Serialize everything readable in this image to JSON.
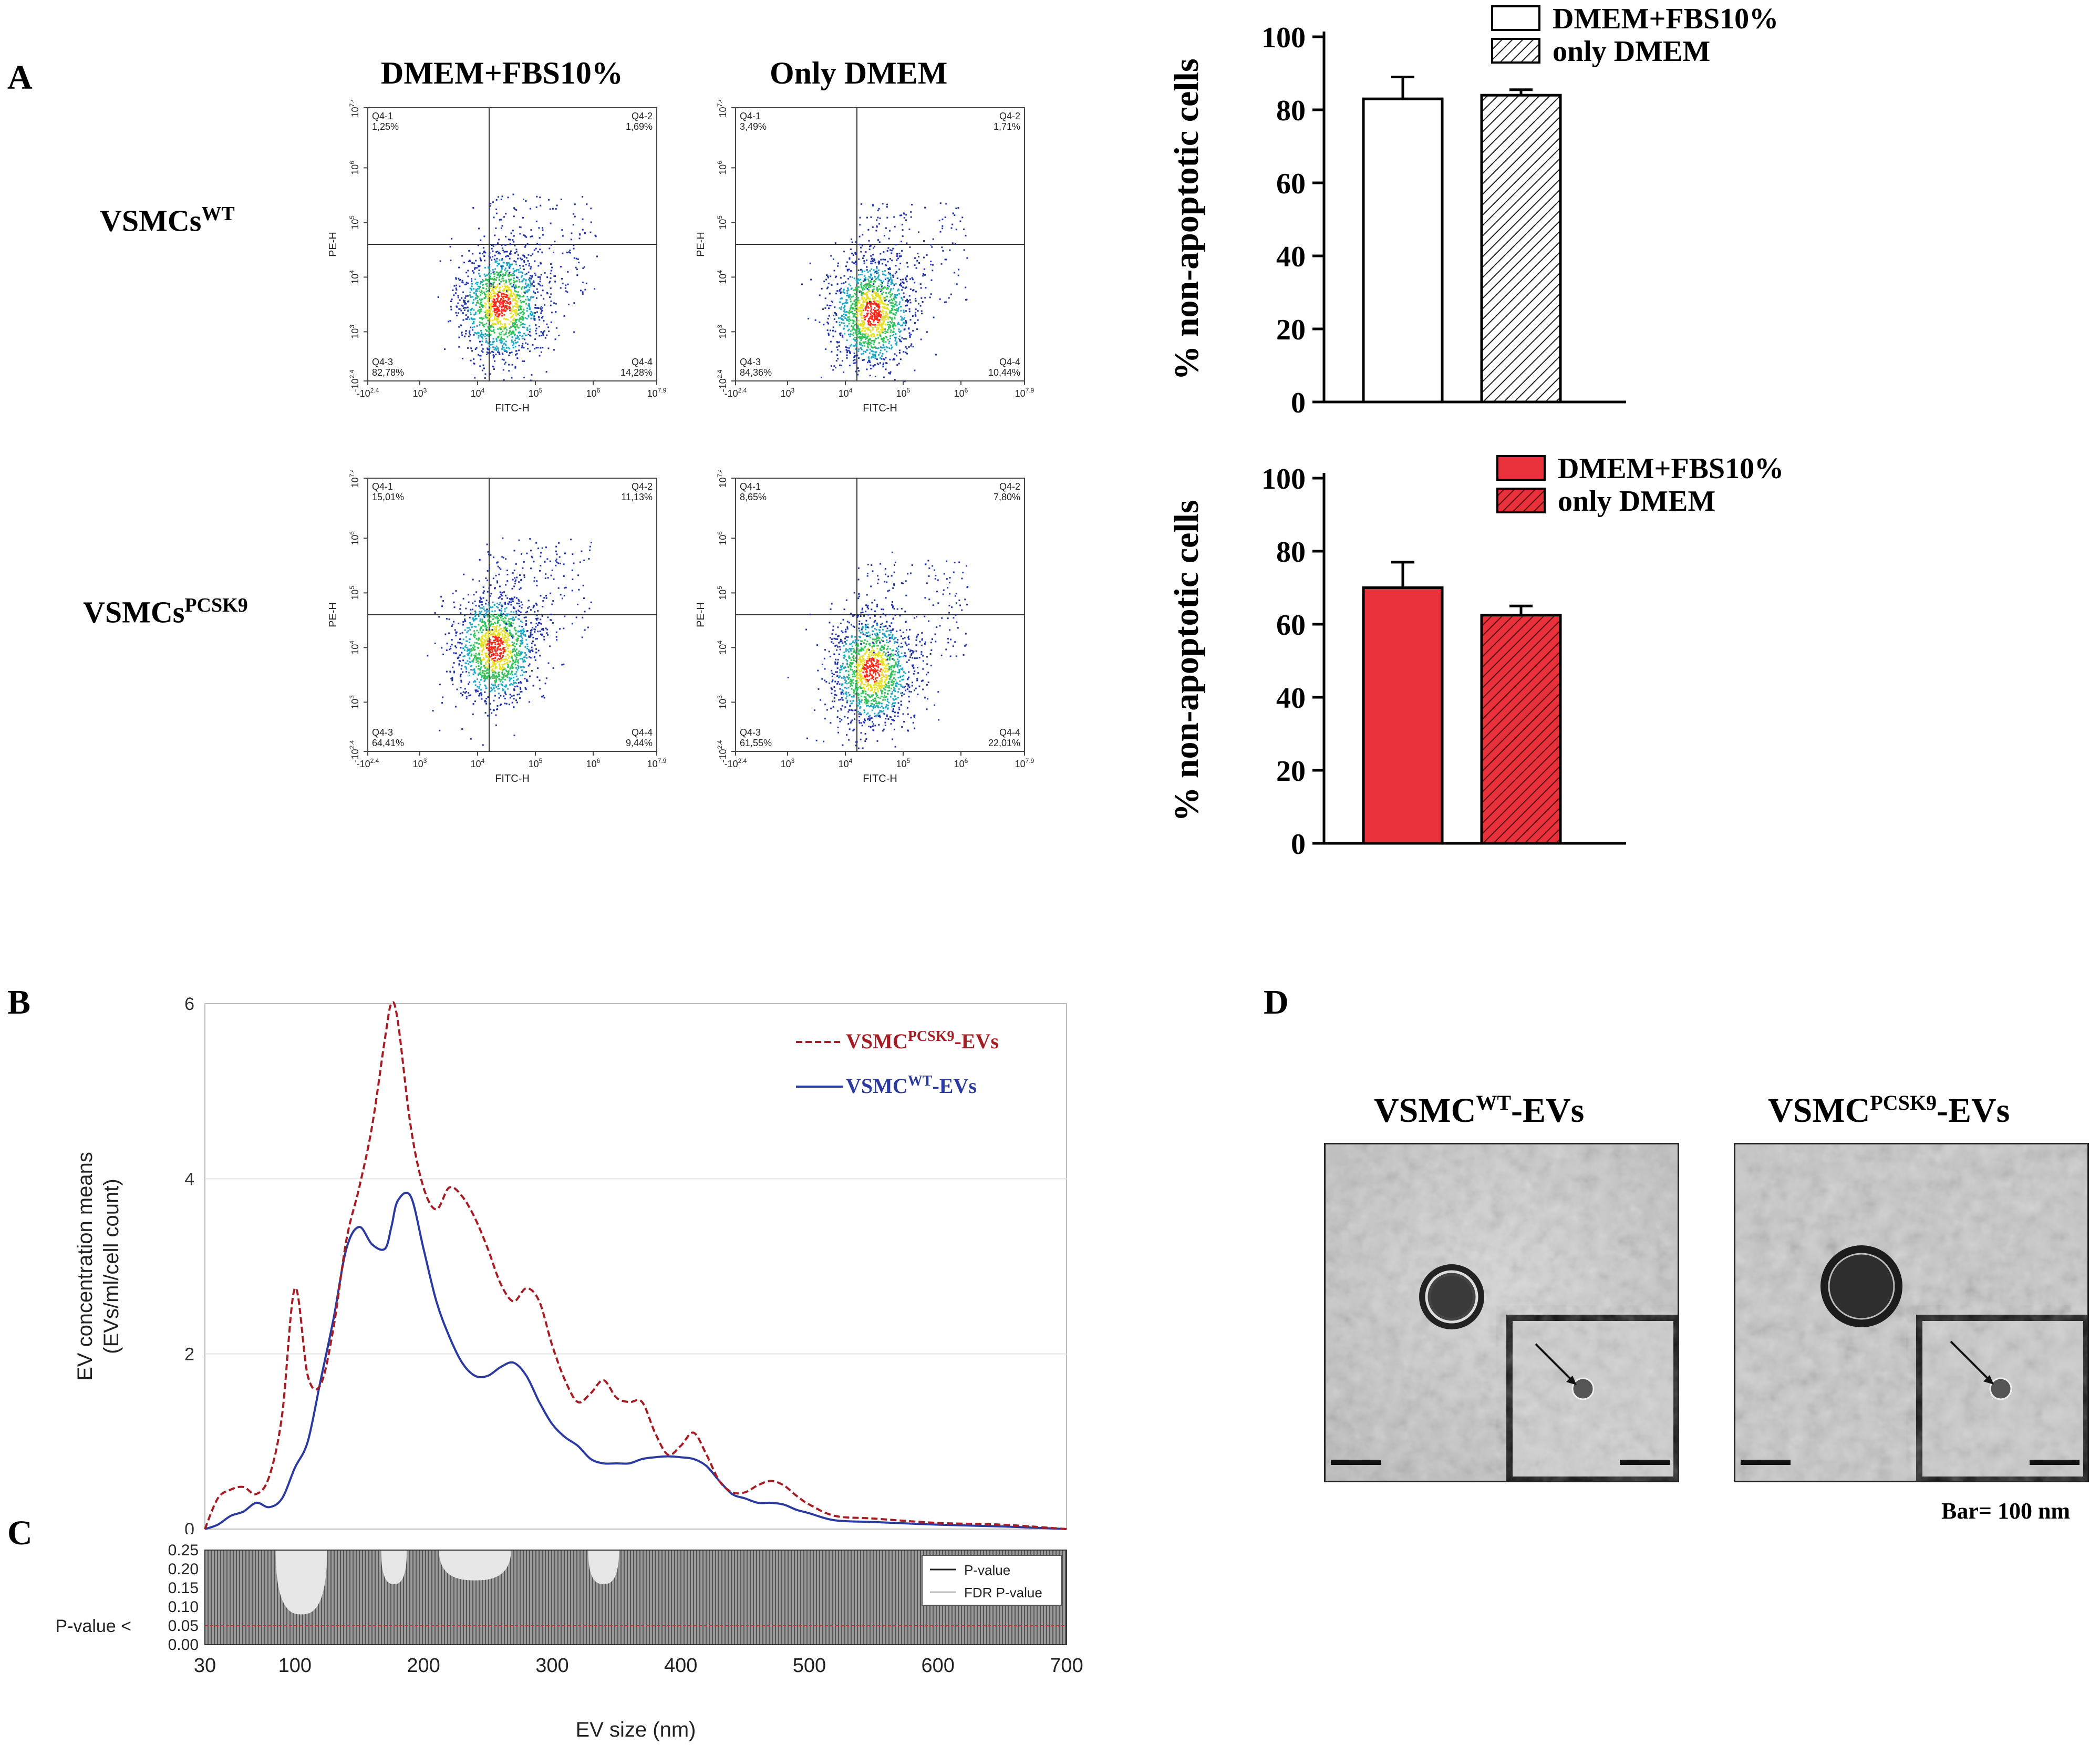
{
  "panels": {
    "A": "A",
    "B": "B",
    "C": "C",
    "D": "D"
  },
  "panelA": {
    "col_titles": [
      "DMEM+FBS10%",
      "Only DMEM"
    ],
    "rows": [
      {
        "base": "VSMCs",
        "sup": "WT"
      },
      {
        "base": "VSMCs",
        "sup": "PCSK9"
      }
    ],
    "flow_axes": {
      "x": "FITC-H",
      "y": "PE-H",
      "xticks": [
        "-10^2.4",
        "10^3",
        "10^4",
        "10^5",
        "10^6",
        "10^7.9"
      ],
      "yticks": [
        "-10^2.4",
        "10^3",
        "10^4",
        "10^5",
        "10^6",
        "10^7.4"
      ]
    },
    "plots": [
      {
        "q1": "Q4-1",
        "q1v": "1,25%",
        "q2": "Q4-2",
        "q2v": "1,69%",
        "q3": "Q4-3",
        "q3v": "82,78%",
        "q4": "Q4-4",
        "q4v": "14,28%"
      },
      {
        "q1": "Q4-1",
        "q1v": "3,49%",
        "q2": "Q4-2",
        "q2v": "1,71%",
        "q3": "Q4-3",
        "q3v": "84,36%",
        "q4": "Q4-4",
        "q4v": "10,44%"
      },
      {
        "q1": "Q4-1",
        "q1v": "15,01%",
        "q2": "Q4-2",
        "q2v": "11,13%",
        "q3": "Q4-3",
        "q3v": "64,41%",
        "q4": "Q4-4",
        "q4v": "9,44%"
      },
      {
        "q1": "Q4-1",
        "q1v": "8,65%",
        "q2": "Q4-2",
        "q2v": "7,80%",
        "q3": "Q4-3",
        "q3v": "61,55%",
        "q4": "Q4-4",
        "q4v": "22,01%"
      }
    ]
  },
  "panelD": {
    "titles": [
      {
        "base": "VSMC",
        "sup": "WT",
        "suffix": "-EVs"
      },
      {
        "base": "VSMC",
        "sup": "PCSK9",
        "suffix": "-EVs"
      }
    ],
    "scale_text": "Bar= 100 nm"
  },
  "colors": {
    "red": "#e8313a",
    "darkred": "#a51d24",
    "blue": "#2b3a9e"
  },
  "chart_data": [
    {
      "type": "bar",
      "ylabel": "% non-apoptotic cells",
      "ylim": [
        0,
        100
      ],
      "yticks": [
        0,
        20,
        40,
        60,
        80,
        100
      ],
      "categories": [
        "DMEM+FBS10%",
        "only DMEM"
      ],
      "values": [
        83,
        84
      ],
      "errors": [
        6,
        1.5
      ],
      "legend": [
        "DMEM+FBS10%",
        "only DMEM"
      ],
      "style": "white"
    },
    {
      "type": "bar",
      "ylabel": "% non-apoptotic cells",
      "ylim": [
        0,
        100
      ],
      "yticks": [
        0,
        20,
        40,
        60,
        80,
        100
      ],
      "categories": [
        "DMEM+FBS10%",
        "only DMEM"
      ],
      "values": [
        70,
        62.5
      ],
      "errors": [
        7,
        2.5
      ],
      "legend": [
        "DMEM+FBS10%",
        "only DMEM"
      ],
      "style": "red"
    },
    {
      "type": "line",
      "ylabel_lines": [
        "EV concentration means",
        "(EVs/ml/cell count)"
      ],
      "ylim": [
        0,
        6
      ],
      "yticks": [
        0,
        2,
        4,
        6
      ],
      "xlim": [
        30,
        700
      ],
      "legend": [
        {
          "base": "VSMC",
          "sup": "PCSK9",
          "suffix": "-EVs"
        },
        {
          "base": "VSMC",
          "sup": "WT",
          "suffix": "-EVs"
        }
      ],
      "series": [
        {
          "name": "VSMC PCSK9-EVs",
          "style": "dashed",
          "x": [
            30,
            40,
            50,
            60,
            70,
            80,
            90,
            100,
            110,
            120,
            130,
            140,
            150,
            160,
            170,
            175,
            180,
            190,
            200,
            210,
            220,
            230,
            240,
            250,
            260,
            270,
            280,
            290,
            300,
            310,
            320,
            330,
            340,
            350,
            360,
            370,
            380,
            390,
            400,
            410,
            420,
            430,
            440,
            450,
            460,
            470,
            480,
            490,
            500,
            520,
            550,
            600,
            650,
            700
          ],
          "y": [
            0,
            0.35,
            0.45,
            0.48,
            0.4,
            0.6,
            1.3,
            2.75,
            1.75,
            1.65,
            2.3,
            3.3,
            3.9,
            4.6,
            5.6,
            6.0,
            5.8,
            4.6,
            3.9,
            3.65,
            3.9,
            3.8,
            3.55,
            3.2,
            2.8,
            2.6,
            2.75,
            2.6,
            2.1,
            1.7,
            1.45,
            1.55,
            1.7,
            1.5,
            1.45,
            1.45,
            1.1,
            0.85,
            0.95,
            1.1,
            0.85,
            0.55,
            0.42,
            0.42,
            0.5,
            0.55,
            0.5,
            0.38,
            0.28,
            0.15,
            0.12,
            0.07,
            0.05,
            0
          ]
        },
        {
          "name": "VSMC WT-EVs",
          "style": "solid",
          "x": [
            30,
            40,
            50,
            60,
            70,
            80,
            90,
            100,
            110,
            120,
            130,
            140,
            150,
            160,
            170,
            175,
            180,
            190,
            200,
            210,
            220,
            230,
            240,
            250,
            260,
            270,
            280,
            290,
            300,
            310,
            320,
            330,
            340,
            350,
            360,
            370,
            380,
            390,
            400,
            410,
            420,
            430,
            440,
            450,
            460,
            470,
            480,
            490,
            500,
            520,
            550,
            600,
            650,
            700
          ],
          "y": [
            0,
            0.05,
            0.15,
            0.2,
            0.3,
            0.25,
            0.35,
            0.7,
            1.0,
            1.7,
            2.4,
            3.2,
            3.45,
            3.25,
            3.2,
            3.45,
            3.75,
            3.8,
            3.2,
            2.6,
            2.2,
            1.9,
            1.75,
            1.75,
            1.85,
            1.9,
            1.75,
            1.45,
            1.2,
            1.05,
            0.95,
            0.8,
            0.75,
            0.75,
            0.75,
            0.8,
            0.82,
            0.83,
            0.82,
            0.8,
            0.72,
            0.55,
            0.4,
            0.35,
            0.3,
            0.3,
            0.28,
            0.22,
            0.18,
            0.1,
            0.08,
            0.05,
            0.03,
            0
          ]
        }
      ]
    },
    {
      "type": "area",
      "xlabel": "EV size (nm)",
      "xlim": [
        30,
        700
      ],
      "xticks": [
        30,
        100,
        200,
        300,
        400,
        500,
        600,
        700
      ],
      "ylim": [
        0,
        0.25
      ],
      "yticks": [
        "0.00",
        "0.05",
        "0.10",
        "0.15",
        "0.20",
        "0.25"
      ],
      "threshold_label": "P-value <",
      "threshold": 0.05,
      "legend": [
        "P-value",
        "FDR P-value"
      ],
      "dips": [
        {
          "center": 105,
          "min": 0.08,
          "width": 20
        },
        {
          "center": 177,
          "min": 0.16,
          "width": 10
        },
        {
          "center": 240,
          "min": 0.17,
          "width": 28
        },
        {
          "center": 340,
          "min": 0.16,
          "width": 12
        }
      ]
    }
  ]
}
